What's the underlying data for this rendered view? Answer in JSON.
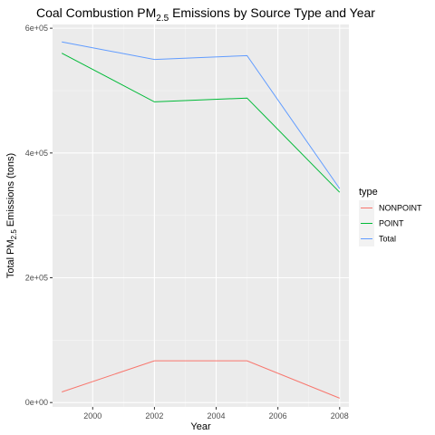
{
  "chart_data": {
    "type": "line",
    "title_main": "Coal Combustion PM",
    "title_sub": "2.5",
    "title_rest": " Emissions by Source Type and Year",
    "xlabel": "Year",
    "ylabel_main": "Total PM",
    "ylabel_sub": "2.5",
    "ylabel_rest": " Emissions (tons)",
    "x": [
      1999,
      2002,
      2005,
      2008
    ],
    "xlim": [
      1998.7,
      2008.3
    ],
    "ylim": [
      -7000,
      606000
    ],
    "x_ticks": [
      2000,
      2002,
      2004,
      2006,
      2008
    ],
    "x_tick_labels": [
      "2000",
      "2002",
      "2004",
      "2006",
      "2008"
    ],
    "y_ticks": [
      0,
      200000,
      400000,
      600000
    ],
    "y_tick_labels": [
      "0e+00",
      "2e+05",
      "4e+05",
      "6e+05"
    ],
    "grid": true,
    "legend_title": "type",
    "legend_position": "right",
    "series": [
      {
        "name": "NONPOINT",
        "color": "#F8766D",
        "values": [
          17000,
          67000,
          67000,
          7000
        ]
      },
      {
        "name": "POINT",
        "color": "#00BA38",
        "values": [
          560000,
          482000,
          488000,
          337000
        ]
      },
      {
        "name": "Total",
        "color": "#619CFF",
        "values": [
          578000,
          550000,
          556000,
          343000
        ]
      }
    ]
  }
}
